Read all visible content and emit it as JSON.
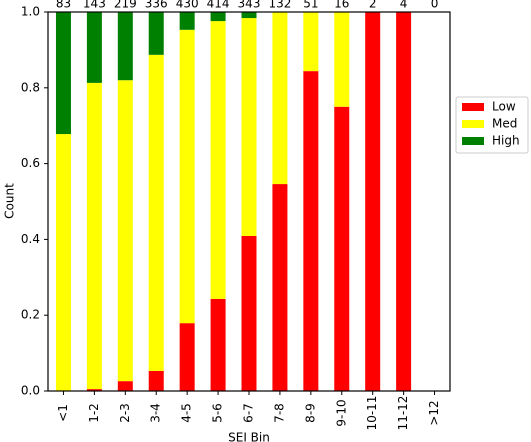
{
  "chart_data": {
    "type": "stacked_bar",
    "xlabel": "SEI Bin",
    "ylabel": "Count",
    "categories": [
      "<1",
      "1-2",
      "2-3",
      "3-4",
      "4-5",
      "5-6",
      "6-7",
      "7-8",
      "8-9",
      "9-10",
      "10-11",
      "11-12",
      ">12"
    ],
    "counts": [
      83,
      143,
      219,
      336,
      430,
      414,
      343,
      132,
      51,
      16,
      2,
      4,
      0
    ],
    "series": [
      {
        "name": "Low",
        "color": "#ff0000",
        "values": [
          0,
          0.005,
          0.026,
          0.053,
          0.179,
          0.243,
          0.409,
          0.546,
          0.844,
          0.75,
          1,
          1,
          0
        ]
      },
      {
        "name": "Med",
        "color": "#ffff00",
        "values": [
          0.678,
          0.808,
          0.794,
          0.834,
          0.774,
          0.733,
          0.575,
          0.454,
          0.156,
          0.25,
          0,
          0,
          0
        ]
      },
      {
        "name": "High",
        "color": "#008000",
        "values": [
          0.322,
          0.187,
          0.18,
          0.113,
          0.047,
          0.024,
          0.016,
          0,
          0,
          0,
          0,
          0,
          0
        ]
      }
    ],
    "ylim": [
      0,
      1
    ],
    "yticks": [
      {
        "value": 0,
        "label": "0.0"
      },
      0.2,
      0.4,
      0.6,
      0.8,
      {
        "value": 1,
        "label": "1.0"
      }
    ],
    "legend": "right"
  }
}
